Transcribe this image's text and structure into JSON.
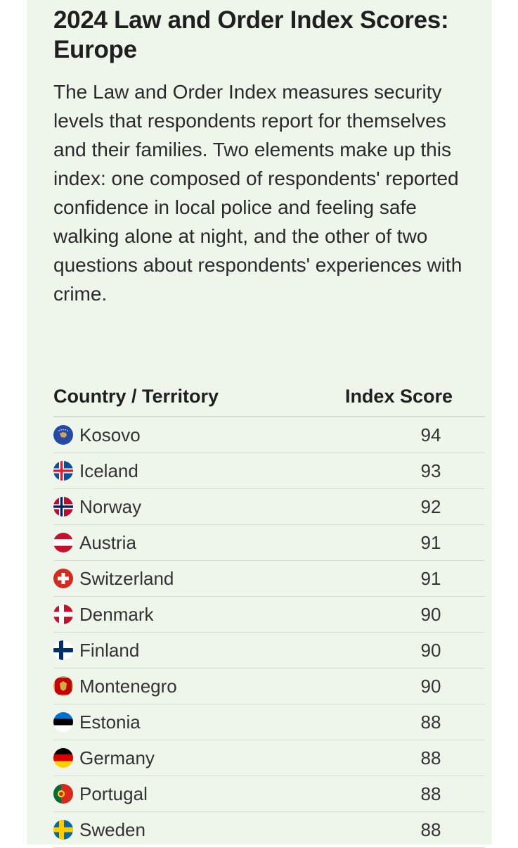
{
  "header": {
    "title": "2024 Law and Order Index Scores: Europe",
    "description": "The Law and Order Index measures security levels that respondents report for themselves and their families. Two elements make up this index: one composed of respondents' reported confidence in local police and feeling safe walking alone at night, and the other of two questions about respondents' experiences with crime."
  },
  "table": {
    "columns": [
      "Country / Territory",
      "Index Score"
    ],
    "rows": [
      [
        "Kosovo",
        94
      ],
      [
        "Iceland",
        93
      ],
      [
        "Norway",
        92
      ],
      [
        "Austria",
        91
      ],
      [
        "Switzerland",
        91
      ],
      [
        "Denmark",
        90
      ],
      [
        "Finland",
        90
      ],
      [
        "Montenegro",
        90
      ],
      [
        "Estonia",
        88
      ],
      [
        "Germany",
        88
      ],
      [
        "Portugal",
        88
      ],
      [
        "Sweden",
        88
      ]
    ]
  }
}
